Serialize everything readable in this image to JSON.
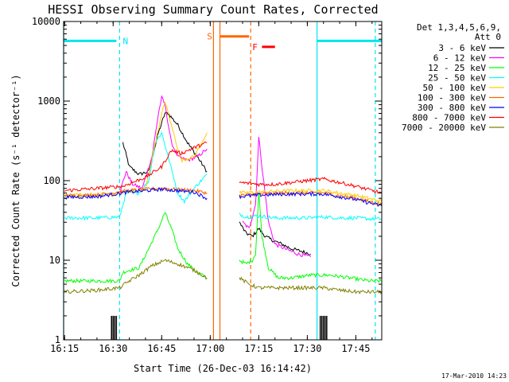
{
  "chart_data": {
    "type": "line",
    "title": "HESSI Observing Summary Count Rates, Corrected",
    "xlabel": "Start Time (26-Dec-03 16:14:42)",
    "ylabel": "Corrected Count Rate (s⁻¹ detector⁻¹)",
    "y_scale": "log",
    "xlim": [
      "16:14:42",
      "17:53:00"
    ],
    "ylim": [
      1,
      10000
    ],
    "x_ticks": [
      "16:15",
      "16:30",
      "16:45",
      "17:00",
      "17:15",
      "17:30",
      "17:45"
    ],
    "y_ticks": [
      {
        "value": 1,
        "label": "1"
      },
      {
        "value": 10,
        "label": "10"
      },
      {
        "value": 100,
        "label": "100"
      },
      {
        "value": 1000,
        "label": "1000"
      },
      {
        "value": 10000,
        "label": "10000"
      }
    ],
    "grid": false,
    "legend_title": [
      "Det 1,3,4,5,6,9,",
      "Att 0"
    ],
    "legend_position": "right",
    "series": [
      {
        "name": "3 - 6 keV",
        "color": "#000000",
        "segments": [
          [
            [
              "16:33",
              300
            ],
            [
              "16:35",
              150
            ],
            [
              "16:38",
              120
            ],
            [
              "16:41",
              130
            ],
            [
              "16:44",
              400
            ],
            [
              "16:46",
              700
            ],
            [
              "16:47",
              700
            ],
            [
              "16:50",
              500
            ],
            [
              "16:53",
              300
            ],
            [
              "16:56",
              200
            ],
            [
              "16:59",
              130
            ]
          ],
          [
            [
              "17:09",
              30
            ],
            [
              "17:11",
              22
            ],
            [
              "17:13",
              20
            ],
            [
              "17:15",
              25
            ],
            [
              "17:17",
              20
            ],
            [
              "17:19",
              18
            ],
            [
              "17:22",
              16
            ],
            [
              "17:25",
              14
            ],
            [
              "17:28",
              13
            ],
            [
              "17:31",
              12
            ]
          ]
        ]
      },
      {
        "name": "6 - 12 keV",
        "color": "#ff00ff",
        "segments": [
          [
            [
              "16:32",
              70
            ],
            [
              "16:34",
              130
            ],
            [
              "16:36",
              90
            ],
            [
              "16:39",
              80
            ],
            [
              "16:42",
              200
            ],
            [
              "16:44",
              700
            ],
            [
              "16:45",
              1100
            ],
            [
              "16:46",
              900
            ],
            [
              "16:48",
              300
            ],
            [
              "16:50",
              200
            ],
            [
              "16:53",
              180
            ],
            [
              "16:56",
              200
            ],
            [
              "16:59",
              250
            ]
          ],
          [
            [
              "17:10",
              30
            ],
            [
              "17:12",
              25
            ],
            [
              "17:14",
              50
            ],
            [
              "17:15",
              350
            ],
            [
              "17:16",
              150
            ],
            [
              "17:18",
              30
            ],
            [
              "17:20",
              16
            ],
            [
              "17:23",
              14
            ],
            [
              "17:27",
              12
            ],
            [
              "17:31",
              11
            ]
          ]
        ]
      },
      {
        "name": "12 - 25 keV",
        "color": "#00ff00",
        "segments": [
          [
            [
              "16:15",
              5.5
            ],
            [
              "16:32",
              5.5
            ],
            [
              "16:33",
              7
            ],
            [
              "16:35",
              7.5
            ],
            [
              "16:38",
              8
            ],
            [
              "16:41",
              14
            ],
            [
              "16:44",
              25
            ],
            [
              "16:46",
              40
            ],
            [
              "16:48",
              25
            ],
            [
              "16:50",
              14
            ],
            [
              "16:53",
              9
            ],
            [
              "16:56",
              7
            ],
            [
              "16:59",
              6
            ]
          ],
          [
            [
              "17:09",
              10
            ],
            [
              "17:11",
              9
            ],
            [
              "17:13",
              10
            ],
            [
              "17:14",
              12
            ],
            [
              "17:15",
              70
            ],
            [
              "17:16",
              20
            ],
            [
              "17:18",
              8
            ],
            [
              "17:21",
              6
            ],
            [
              "17:25",
              6
            ],
            [
              "17:31",
              6.5
            ],
            [
              "17:37",
              6.5
            ],
            [
              "17:43",
              6
            ],
            [
              "17:49",
              5.5
            ],
            [
              "17:53",
              5.5
            ]
          ]
        ]
      },
      {
        "name": "25 - 50 keV",
        "color": "#00ffff",
        "segments": [
          [
            [
              "16:15",
              34
            ],
            [
              "16:25",
              34
            ],
            [
              "16:32",
              35
            ],
            [
              "16:34",
              70
            ],
            [
              "16:38",
              70
            ],
            [
              "16:41",
              100
            ],
            [
              "16:43",
              300
            ],
            [
              "16:45",
              400
            ],
            [
              "16:47",
              200
            ],
            [
              "16:50",
              70
            ],
            [
              "16:52",
              55
            ],
            [
              "16:55",
              80
            ],
            [
              "16:59",
              120
            ]
          ],
          [
            [
              "17:09",
              38
            ],
            [
              "17:11",
              35
            ],
            [
              "17:15",
              36
            ],
            [
              "17:20",
              34
            ],
            [
              "17:25",
              34
            ],
            [
              "17:30",
              34
            ],
            [
              "17:35",
              35
            ],
            [
              "17:40",
              34
            ],
            [
              "17:45",
              34
            ],
            [
              "17:50",
              33
            ],
            [
              "17:53",
              33
            ]
          ]
        ]
      },
      {
        "name": "50 - 100 keV",
        "color": "#ffcc00",
        "segments": [
          [
            [
              "16:15",
              65
            ],
            [
              "16:30",
              68
            ],
            [
              "16:35",
              75
            ],
            [
              "16:40",
              78
            ],
            [
              "16:43",
              300
            ],
            [
              "16:46",
              1000
            ],
            [
              "16:48",
              500
            ],
            [
              "16:51",
              180
            ],
            [
              "16:55",
              200
            ],
            [
              "16:59",
              400
            ]
          ],
          [
            [
              "17:09",
              70
            ],
            [
              "17:15",
              72
            ],
            [
              "17:25",
              75
            ],
            [
              "17:35",
              75
            ],
            [
              "17:45",
              65
            ],
            [
              "17:53",
              55
            ]
          ]
        ]
      },
      {
        "name": "100 - 300 keV",
        "color": "#ff6600",
        "segments": [
          [
            [
              "16:15",
              65
            ],
            [
              "16:25",
              66
            ],
            [
              "16:35",
              75
            ],
            [
              "16:45",
              80
            ],
            [
              "16:55",
              75
            ],
            [
              "16:59",
              70
            ]
          ],
          [
            [
              "17:09",
              65
            ],
            [
              "17:15",
              68
            ],
            [
              "17:25",
              70
            ],
            [
              "17:35",
              70
            ],
            [
              "17:45",
              60
            ],
            [
              "17:53",
              50
            ]
          ]
        ]
      },
      {
        "name": "300 - 800 keV",
        "color": "#0000ff",
        "segments": [
          [
            [
              "16:15",
              62
            ],
            [
              "16:25",
              63
            ],
            [
              "16:35",
              72
            ],
            [
              "16:45",
              78
            ],
            [
              "16:55",
              72
            ],
            [
              "16:59",
              60
            ]
          ],
          [
            [
              "17:09",
              63
            ],
            [
              "17:15",
              66
            ],
            [
              "17:25",
              68
            ],
            [
              "17:35",
              68
            ],
            [
              "17:45",
              58
            ],
            [
              "17:53",
              48
            ]
          ]
        ]
      },
      {
        "name": "800 - 7000 keV",
        "color": "#ff0000",
        "segments": [
          [
            [
              "16:15",
              75
            ],
            [
              "16:25",
              80
            ],
            [
              "16:33",
              85
            ],
            [
              "16:40",
              110
            ],
            [
              "16:45",
              150
            ],
            [
              "16:48",
              240
            ],
            [
              "16:51",
              220
            ],
            [
              "16:55",
              260
            ],
            [
              "16:59",
              300
            ]
          ],
          [
            [
              "17:09",
              95
            ],
            [
              "17:15",
              90
            ],
            [
              "17:20",
              90
            ],
            [
              "17:25",
              95
            ],
            [
              "17:30",
              100
            ],
            [
              "17:35",
              105
            ],
            [
              "17:40",
              95
            ],
            [
              "17:45",
              85
            ],
            [
              "17:50",
              75
            ],
            [
              "17:53",
              70
            ]
          ]
        ]
      },
      {
        "name": "7000 - 20000 keV",
        "color": "#808000",
        "segments": [
          [
            [
              "16:15",
              4
            ],
            [
              "16:25",
              4.2
            ],
            [
              "16:32",
              4.5
            ],
            [
              "16:35",
              5.5
            ],
            [
              "16:38",
              6.5
            ],
            [
              "16:42",
              8.5
            ],
            [
              "16:46",
              10
            ],
            [
              "16:50",
              9
            ],
            [
              "16:55",
              7.5
            ],
            [
              "16:59",
              6
            ]
          ],
          [
            [
              "17:09",
              6
            ],
            [
              "17:12",
              5
            ],
            [
              "17:15",
              4.5
            ],
            [
              "17:20",
              4.5
            ],
            [
              "17:25",
              4.5
            ],
            [
              "17:30",
              4.5
            ],
            [
              "17:35",
              4.5
            ],
            [
              "17:40",
              4.2
            ],
            [
              "17:45",
              4
            ],
            [
              "17:50",
              4
            ],
            [
              "17:53",
              4
            ]
          ]
        ]
      }
    ],
    "spikes": {
      "color": "#000000",
      "min": 1,
      "max": 2,
      "times": [
        "16:29:30",
        "16:30",
        "16:30:30",
        "16:31",
        "17:34",
        "17:34:30",
        "17:35",
        "17:35:30",
        "17:36"
      ]
    },
    "annotations": [
      {
        "label": "N",
        "color": "#00e5ee",
        "bar": {
          "from": "16:14:42",
          "to": "16:31:00",
          "value": 5700
        },
        "at": "16:33",
        "value": 5700
      },
      {
        "label": "N",
        "color": "#00e5ee",
        "bar": {
          "from": "17:33:00",
          "to": "17:53:00",
          "value": 5700
        }
      },
      {
        "label": "S",
        "color": "#ff6600",
        "bar": {
          "from": "17:03:00",
          "to": "17:12:00",
          "value": 6500
        },
        "at": "16:59",
        "value": 6500
      },
      {
        "label": "F",
        "color": "#ff0000",
        "bar": {
          "from": "17:16:00",
          "to": "17:20:00",
          "value": 4800
        },
        "at": "17:13",
        "value": 4800
      }
    ],
    "vlines": [
      {
        "time": "16:14:42",
        "color": "#00e5ee",
        "style": "solid"
      },
      {
        "time": "16:32:00",
        "color": "#00e5ee",
        "style": "dashed"
      },
      {
        "time": "17:33:00",
        "color": "#00e5ee",
        "style": "solid"
      },
      {
        "time": "17:51:00",
        "color": "#00e5ee",
        "style": "dashed"
      },
      {
        "time": "17:01:00",
        "color": "#ff6600",
        "style": "solid"
      },
      {
        "time": "17:03:00",
        "color": "#ff6600",
        "style": "solid"
      },
      {
        "time": "17:12:30",
        "color": "#ff6600",
        "style": "dashed"
      }
    ]
  },
  "footer_timestamp": "17-Mar-2010 14:23"
}
